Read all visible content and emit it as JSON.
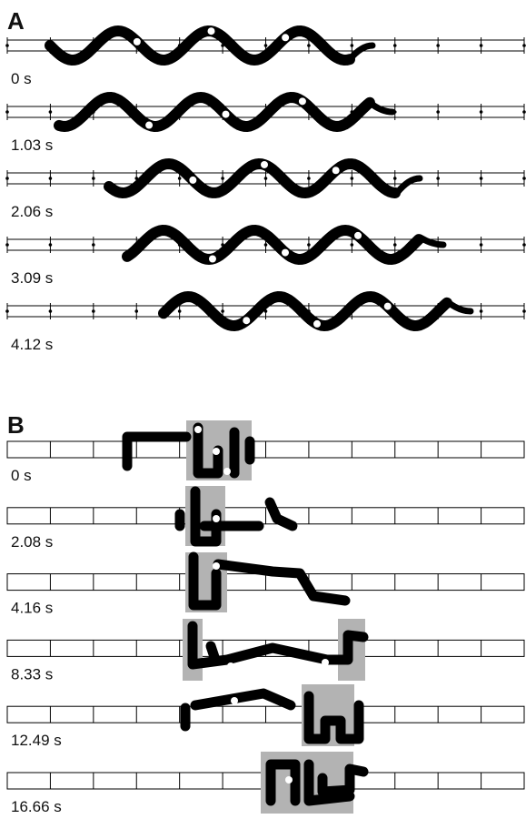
{
  "panel_a": {
    "label": "A",
    "trials": [
      {
        "time": "0 s"
      },
      {
        "time": "1.03 s"
      },
      {
        "time": "2.06 s"
      },
      {
        "time": "3.09 s"
      },
      {
        "time": "4.12 s"
      }
    ]
  },
  "panel_b": {
    "label": "B",
    "trials": [
      {
        "time": "0 s"
      },
      {
        "time": "2.08 s"
      },
      {
        "time": "4.16 s"
      },
      {
        "time": "8.33 s"
      },
      {
        "time": "12.49 s"
      },
      {
        "time": "16.66 s"
      }
    ]
  }
}
